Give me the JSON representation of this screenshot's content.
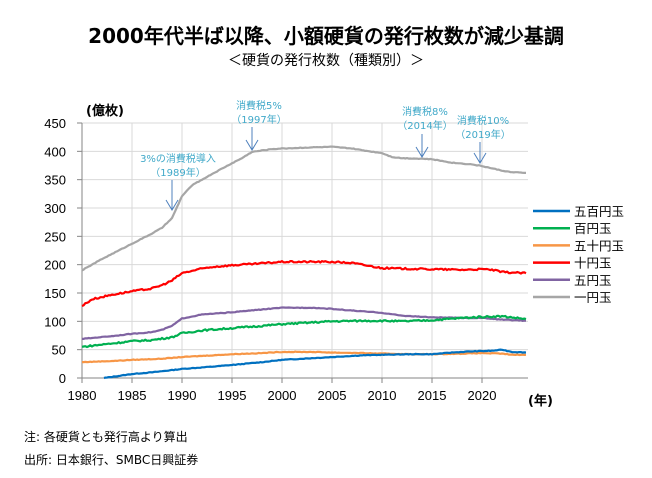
{
  "title": "2000年代半ば以降、小額硬貨の発行枚数が減少基調",
  "subtitle": "＜硬貨の発行枚数（種類別）＞",
  "notes": {
    "note": "注: 各硬貨とも発行高より算出",
    "source": "出所: 日本銀行、SMBC日興証券"
  },
  "chart_data": {
    "type": "line",
    "title": "硬貨の発行枚数（種類別）",
    "ylabel": "(億枚)",
    "xlabel": "(年)",
    "ylim": [
      0,
      450
    ],
    "xlim": [
      1980,
      2024.5
    ],
    "yticks": [
      0,
      50,
      100,
      150,
      200,
      250,
      300,
      350,
      400,
      450
    ],
    "xticks": [
      1980,
      1985,
      1990,
      1995,
      2000,
      2005,
      2010,
      2015,
      2020
    ],
    "grid": true,
    "legend_position": "right",
    "series": [
      {
        "name": "五百円玉",
        "color": "#0070c0",
        "points": [
          [
            1982.2,
            0
          ],
          [
            1983,
            2
          ],
          [
            1985,
            7
          ],
          [
            1987,
            10
          ],
          [
            1990,
            16
          ],
          [
            1993,
            20
          ],
          [
            1995,
            23
          ],
          [
            1998,
            28
          ],
          [
            2000,
            32
          ],
          [
            2003,
            35
          ],
          [
            2005,
            37
          ],
          [
            2008,
            40
          ],
          [
            2010,
            41
          ],
          [
            2013,
            42
          ],
          [
            2015,
            42
          ],
          [
            2017,
            45
          ],
          [
            2019,
            47
          ],
          [
            2021,
            48
          ],
          [
            2022,
            50
          ],
          [
            2023,
            46
          ],
          [
            2024.4,
            45
          ]
        ]
      },
      {
        "name": "百円玉",
        "color": "#00b050",
        "points": [
          [
            1980,
            55
          ],
          [
            1982,
            59
          ],
          [
            1985,
            65
          ],
          [
            1987,
            67
          ],
          [
            1989,
            72
          ],
          [
            1990,
            79
          ],
          [
            1992,
            84
          ],
          [
            1995,
            88
          ],
          [
            1998,
            92
          ],
          [
            2000,
            95
          ],
          [
            2003,
            98
          ],
          [
            2005,
            100
          ],
          [
            2008,
            101
          ],
          [
            2010,
            101
          ],
          [
            2012,
            100
          ],
          [
            2015,
            102
          ],
          [
            2018,
            106
          ],
          [
            2020,
            108
          ],
          [
            2022,
            109
          ],
          [
            2024.4,
            104
          ]
        ]
      },
      {
        "name": "五十円玉",
        "color": "#f79646",
        "points": [
          [
            1980,
            28
          ],
          [
            1983,
            30
          ],
          [
            1985,
            32
          ],
          [
            1988,
            34
          ],
          [
            1990,
            37
          ],
          [
            1993,
            40
          ],
          [
            1995,
            42
          ],
          [
            1998,
            44
          ],
          [
            2000,
            46
          ],
          [
            2003,
            46
          ],
          [
            2005,
            45
          ],
          [
            2008,
            44
          ],
          [
            2010,
            43
          ],
          [
            2013,
            42
          ],
          [
            2015,
            42
          ],
          [
            2018,
            43
          ],
          [
            2020,
            44
          ],
          [
            2022,
            43
          ],
          [
            2023,
            41
          ],
          [
            2024.4,
            41
          ]
        ]
      },
      {
        "name": "十円玉",
        "color": "#ff0000",
        "points": [
          [
            1980,
            127
          ],
          [
            1981,
            139
          ],
          [
            1983,
            147
          ],
          [
            1985,
            153
          ],
          [
            1987,
            158
          ],
          [
            1988,
            164
          ],
          [
            1989,
            172
          ],
          [
            1990,
            185
          ],
          [
            1992,
            193
          ],
          [
            1993,
            196
          ],
          [
            1995,
            199
          ],
          [
            1997,
            201
          ],
          [
            2000,
            205
          ],
          [
            2003,
            205
          ],
          [
            2005,
            205
          ],
          [
            2007,
            203
          ],
          [
            2008,
            200
          ],
          [
            2010,
            194
          ],
          [
            2012,
            193
          ],
          [
            2015,
            192
          ],
          [
            2018,
            191
          ],
          [
            2020,
            192
          ],
          [
            2021,
            191
          ],
          [
            2022,
            187
          ],
          [
            2024.4,
            185
          ]
        ]
      },
      {
        "name": "五円玉",
        "color": "#8064a2",
        "points": [
          [
            1980,
            69
          ],
          [
            1983,
            74
          ],
          [
            1985,
            78
          ],
          [
            1987,
            81
          ],
          [
            1988,
            85
          ],
          [
            1989,
            92
          ],
          [
            1990,
            105
          ],
          [
            1992,
            112
          ],
          [
            1995,
            116
          ],
          [
            1998,
            121
          ],
          [
            2000,
            124
          ],
          [
            2003,
            124
          ],
          [
            2005,
            122
          ],
          [
            2007,
            119
          ],
          [
            2010,
            115
          ],
          [
            2012,
            110
          ],
          [
            2015,
            107
          ],
          [
            2018,
            106
          ],
          [
            2020,
            106
          ],
          [
            2022,
            103
          ],
          [
            2024.4,
            101
          ]
        ]
      },
      {
        "name": "一円玉",
        "color": "#a6a6a6",
        "points": [
          [
            1980,
            190
          ],
          [
            1982,
            210
          ],
          [
            1985,
            237
          ],
          [
            1987,
            255
          ],
          [
            1988,
            265
          ],
          [
            1989,
            282
          ],
          [
            1990,
            321
          ],
          [
            1991,
            340
          ],
          [
            1992,
            350
          ],
          [
            1993,
            360
          ],
          [
            1995,
            379
          ],
          [
            1996,
            388
          ],
          [
            1997,
            399
          ],
          [
            1999,
            404
          ],
          [
            2000,
            405
          ],
          [
            2003,
            407
          ],
          [
            2005,
            408
          ],
          [
            2007,
            405
          ],
          [
            2008,
            402
          ],
          [
            2010,
            397
          ],
          [
            2011,
            390
          ],
          [
            2012,
            388
          ],
          [
            2014,
            387
          ],
          [
            2015,
            386
          ],
          [
            2017,
            380
          ],
          [
            2019,
            377
          ],
          [
            2020,
            374
          ],
          [
            2021,
            370
          ],
          [
            2022,
            366
          ],
          [
            2023,
            363
          ],
          [
            2024.4,
            362
          ]
        ]
      }
    ],
    "annotations": [
      {
        "line1": "3%の消費税導入",
        "line2": "（1989年）",
        "x": 1989,
        "y": 282
      },
      {
        "line1": "消費税5%",
        "line2": "（1997年）",
        "x": 1997,
        "y": 399
      },
      {
        "line1": "消費税8%",
        "line2": "（2014年）",
        "x": 2014,
        "y": 387
      },
      {
        "line1": "消費税10%",
        "line2": "（2019年）",
        "x": 2019.8,
        "y": 375
      }
    ],
    "annotation_color": "#41a9c9",
    "arrow_color": "#4f81bd"
  }
}
